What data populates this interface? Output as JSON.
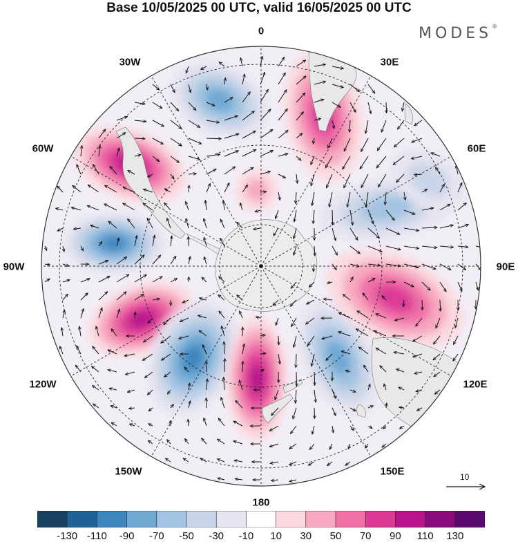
{
  "title": "Base 10/05/2025 00 UTC, valid 16/05/2025 00 UTC",
  "logo": "MODES",
  "logo_mark": "®",
  "longitude_labels": [
    "0",
    "30E",
    "60E",
    "90E",
    "120E",
    "150E",
    "180",
    "150W",
    "120W",
    "90W",
    "60W",
    "30W"
  ],
  "vector_scale": {
    "label": "10"
  },
  "colorbar": {
    "ticks": [
      "-130",
      "-110",
      "-90",
      "-70",
      "-50",
      "-30",
      "-10",
      "10",
      "30",
      "50",
      "70",
      "90",
      "110",
      "130"
    ],
    "colors": [
      "#17415f",
      "#1f6396",
      "#3d86be",
      "#6ea8d3",
      "#a2c3e1",
      "#c9d5e8",
      "#e6e4f0",
      "#ffffff",
      "#fbd9de",
      "#f6a9c0",
      "#ef6fa7",
      "#dc3a95",
      "#b8158c",
      "#8a0a7e",
      "#5a0a6e"
    ]
  },
  "features": {
    "land_color": "#e8e8e8",
    "antarctica_color": "#ececec"
  }
}
